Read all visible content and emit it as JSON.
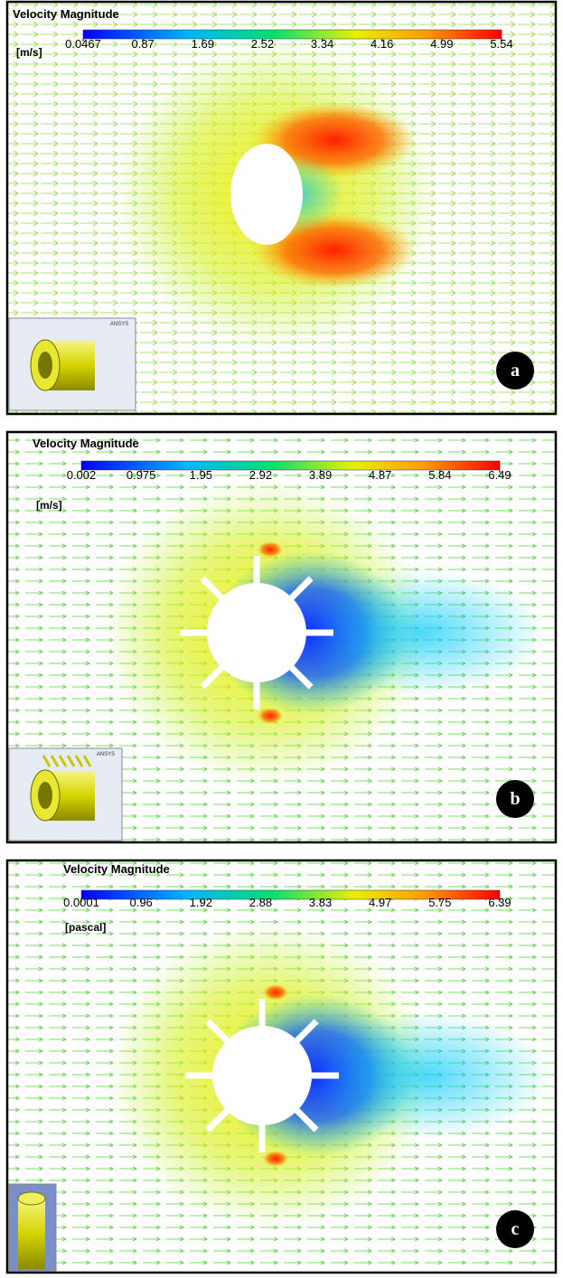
{
  "panels": [
    {
      "title": "Velocity Magnitude",
      "unit": "[m/s]",
      "colorbar_ticks": [
        "0.0467",
        "0.87",
        "1.69",
        "2.52",
        "3.34",
        "4.16",
        "4.99",
        "5.54"
      ],
      "label": "a",
      "inset_logo": "ANSYS"
    },
    {
      "title": "Velocity Magnitude",
      "unit": "[m/s]",
      "colorbar_ticks": [
        "0.002",
        "0.975",
        "1.95",
        "2.92",
        "3.89",
        "4.87",
        "5.84",
        "6.49"
      ],
      "label": "b",
      "inset_logo": "ANSYS"
    },
    {
      "title": "Velocity Magnitude",
      "unit": "[pascal]",
      "colorbar_ticks": [
        "0.0001",
        "0.96",
        "1.92",
        "2.88",
        "3.83",
        "4.97",
        "5.75",
        "6.39"
      ],
      "label": "c"
    }
  ]
}
